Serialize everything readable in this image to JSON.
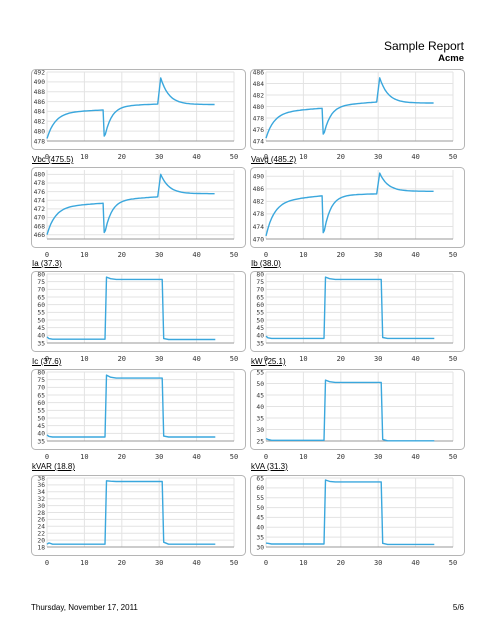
{
  "header": {
    "title": "Sample Report",
    "company": "Acme"
  },
  "footer": {
    "date": "Thursday, November 17, 2011",
    "page": "5/6"
  },
  "chart_data": [
    {
      "type": "line",
      "label": "",
      "xticks": [
        0,
        10,
        20,
        30,
        40,
        50
      ],
      "yticks": [
        478,
        480,
        482,
        484,
        486,
        488,
        490,
        492
      ],
      "ylim": [
        478,
        492
      ],
      "xlim": [
        0,
        50
      ],
      "shape": "volt",
      "start": 478.5,
      "b1": 483.8,
      "r1": 484.3,
      "dip": 479.0,
      "b2": 485.1,
      "r2": 485.5,
      "peak": 490.8,
      "b3": 485.4
    },
    {
      "type": "line",
      "label": "",
      "xticks": [
        0,
        10,
        20,
        30,
        40,
        50
      ],
      "yticks": [
        474,
        476,
        478,
        480,
        482,
        484,
        486
      ],
      "ylim": [
        474,
        486
      ],
      "xlim": [
        0,
        50
      ],
      "shape": "volt",
      "start": 474.5,
      "b1": 479.0,
      "r1": 479.7,
      "dip": 475.2,
      "b2": 480.1,
      "r2": 480.8,
      "peak": 485.0,
      "b3": 480.6
    },
    {
      "type": "line",
      "label": "Vbc (475.5)",
      "xticks": [
        0,
        10,
        20,
        30,
        40,
        50
      ],
      "yticks": [
        466,
        468,
        470,
        472,
        474,
        476,
        478,
        480
      ],
      "ylim": [
        465,
        481
      ],
      "xlim": [
        0,
        50
      ],
      "shape": "volt",
      "start": 466.0,
      "b1": 472.5,
      "r1": 473.3,
      "dip": 466.5,
      "b2": 474.0,
      "r2": 474.8,
      "peak": 480.0,
      "b3": 475.5
    },
    {
      "type": "line",
      "label": "Vavg (485.2)",
      "xticks": [
        0,
        10,
        20,
        30,
        40,
        50
      ],
      "yticks": [
        470,
        474,
        478,
        482,
        486,
        490
      ],
      "ylim": [
        470,
        492
      ],
      "xlim": [
        0,
        50
      ],
      "shape": "volt",
      "start": 471.0,
      "b1": 482.0,
      "r1": 483.8,
      "dip": 472.0,
      "b2": 484.0,
      "r2": 484.4,
      "peak": 491.0,
      "b3": 485.2
    },
    {
      "type": "line",
      "label": "Ia (37.3)",
      "xticks": [
        0,
        10,
        20,
        30,
        40,
        50
      ],
      "yticks": [
        35,
        40,
        45,
        50,
        55,
        60,
        65,
        70,
        75,
        80
      ],
      "ylim": [
        35,
        80
      ],
      "xlim": [
        0,
        50
      ],
      "shape": "step",
      "pre": 37.5,
      "start": 39.0,
      "peak": 78.0,
      "plateau": 76.5,
      "post": 37.3
    },
    {
      "type": "line",
      "label": "Ib (38.0)",
      "xticks": [
        0,
        10,
        20,
        30,
        40,
        50
      ],
      "yticks": [
        35,
        40,
        45,
        50,
        55,
        60,
        65,
        70,
        75,
        80
      ],
      "ylim": [
        35,
        80
      ],
      "xlim": [
        0,
        50
      ],
      "shape": "step",
      "pre": 38.0,
      "start": 39.5,
      "peak": 78.0,
      "plateau": 76.5,
      "post": 38.0
    },
    {
      "type": "line",
      "label": "Ic (37.6)",
      "xticks": [
        0,
        10,
        20,
        30,
        40,
        50
      ],
      "yticks": [
        35,
        40,
        45,
        50,
        55,
        60,
        65,
        70,
        75,
        80
      ],
      "ylim": [
        35,
        80
      ],
      "xlim": [
        0,
        50
      ],
      "shape": "step",
      "pre": 37.6,
      "start": 39.0,
      "peak": 78.0,
      "plateau": 76.0,
      "post": 37.6
    },
    {
      "type": "line",
      "label": "kW (25.1)",
      "xticks": [
        0,
        10,
        20,
        30,
        40,
        50
      ],
      "yticks": [
        25,
        30,
        35,
        40,
        45,
        50,
        55
      ],
      "ylim": [
        25,
        55
      ],
      "xlim": [
        0,
        50
      ],
      "shape": "step",
      "pre": 25.3,
      "start": 26.0,
      "peak": 51.5,
      "plateau": 50.5,
      "post": 25.1
    },
    {
      "type": "line",
      "label": "kVAR (18.8)",
      "xticks": [
        0,
        10,
        20,
        30,
        40,
        50
      ],
      "yticks": [
        18,
        20,
        22,
        24,
        26,
        28,
        30,
        32,
        34,
        36,
        38
      ],
      "ylim": [
        18,
        38
      ],
      "xlim": [
        0,
        50
      ],
      "shape": "step",
      "pre": 18.8,
      "start": 18.8,
      "peak": 37.2,
      "plateau": 37.0,
      "post": 18.8
    },
    {
      "type": "line",
      "label": "kVA (31.3)",
      "xticks": [
        0,
        10,
        20,
        30,
        40,
        50
      ],
      "yticks": [
        30,
        35,
        40,
        45,
        50,
        55,
        60,
        65
      ],
      "ylim": [
        30,
        65
      ],
      "xlim": [
        0,
        50
      ],
      "shape": "step",
      "pre": 31.5,
      "start": 32.0,
      "peak": 64.0,
      "plateau": 63.0,
      "post": 31.3
    }
  ]
}
